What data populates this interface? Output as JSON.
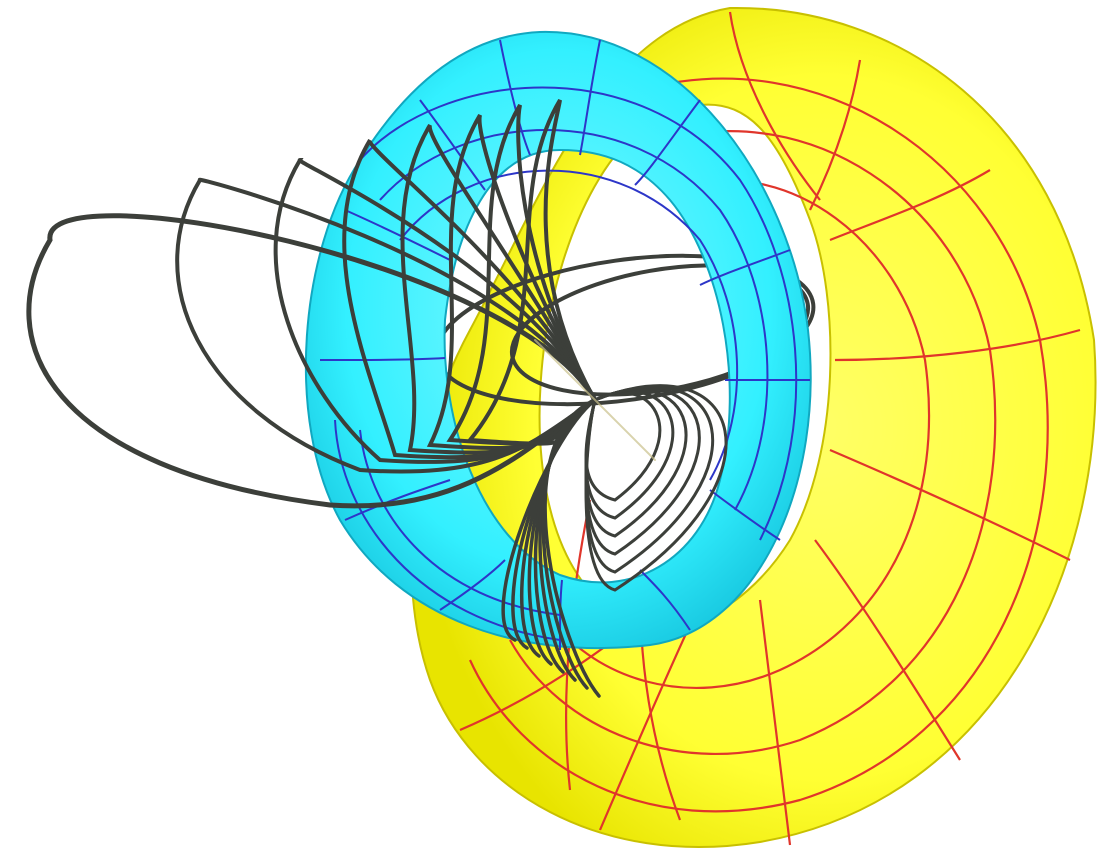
{
  "figure": {
    "kind": "3d-rendering",
    "subject": "two-linked-tori-with-field-line-loops",
    "colors": {
      "background": "#ffffff",
      "yellow_torus_fill": "#ffff33",
      "yellow_torus_shade": "#e8e400",
      "yellow_torus_grid": "#e0352b",
      "cyan_torus_fill": "#33f0ff",
      "cyan_torus_shade": "#18c8e0",
      "cyan_torus_grid": "#2d36c8",
      "loop_stroke": "#3c3f3a",
      "loop_highlight": "#c9c08a"
    }
  }
}
